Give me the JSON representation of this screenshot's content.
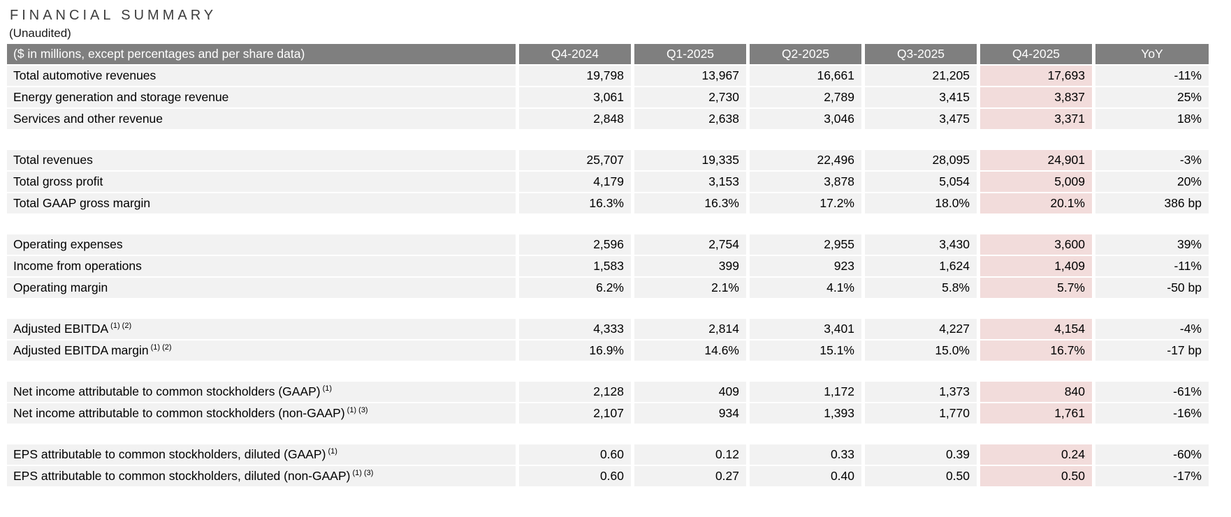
{
  "page": {
    "title": "FINANCIAL SUMMARY",
    "subtitle": "(Unaudited)"
  },
  "colors": {
    "header_bg": "#7f7f7f",
    "header_text": "#ffffff",
    "row_bg": "#f2f2f2",
    "highlight_bg": "#f2dcdb",
    "title_text": "#3d3d3d",
    "body_text": "#000000"
  },
  "table": {
    "header": {
      "label": "($ in millions, except percentages and per share data)",
      "columns": [
        "Q4-2024",
        "Q1-2025",
        "Q2-2025",
        "Q3-2025",
        "Q4-2025",
        "YoY"
      ]
    },
    "highlight_column": "Q4-2025",
    "rows": [
      {
        "label": "Total automotive revenues",
        "sup": "",
        "values": [
          "19,798",
          "13,967",
          "16,661",
          "21,205",
          "17,693",
          "-11%"
        ]
      },
      {
        "label": "Energy generation and storage revenue",
        "sup": "",
        "values": [
          "3,061",
          "2,730",
          "2,789",
          "3,415",
          "3,837",
          "25%"
        ]
      },
      {
        "label": "Services and other revenue",
        "sup": "",
        "values": [
          "2,848",
          "2,638",
          "3,046",
          "3,475",
          "3,371",
          "18%"
        ]
      },
      {
        "spacer": true
      },
      {
        "label": "Total revenues",
        "sup": "",
        "values": [
          "25,707",
          "19,335",
          "22,496",
          "28,095",
          "24,901",
          "-3%"
        ]
      },
      {
        "label": "Total gross profit",
        "sup": "",
        "values": [
          "4,179",
          "3,153",
          "3,878",
          "5,054",
          "5,009",
          "20%"
        ]
      },
      {
        "label": "Total GAAP gross margin",
        "sup": "",
        "values": [
          "16.3%",
          "16.3%",
          "17.2%",
          "18.0%",
          "20.1%",
          "386 bp"
        ]
      },
      {
        "spacer": true
      },
      {
        "label": "Operating expenses",
        "sup": "",
        "values": [
          "2,596",
          "2,754",
          "2,955",
          "3,430",
          "3,600",
          "39%"
        ]
      },
      {
        "label": "Income from operations",
        "sup": "",
        "values": [
          "1,583",
          "399",
          "923",
          "1,624",
          "1,409",
          "-11%"
        ]
      },
      {
        "label": "Operating margin",
        "sup": "",
        "values": [
          "6.2%",
          "2.1%",
          "4.1%",
          "5.8%",
          "5.7%",
          "-50 bp"
        ]
      },
      {
        "spacer": true
      },
      {
        "label": "Adjusted EBITDA",
        "sup": "(1) (2)",
        "values": [
          "4,333",
          "2,814",
          "3,401",
          "4,227",
          "4,154",
          "-4%"
        ]
      },
      {
        "label": "Adjusted EBITDA margin",
        "sup": "(1) (2)",
        "values": [
          "16.9%",
          "14.6%",
          "15.1%",
          "15.0%",
          "16.7%",
          "-17 bp"
        ]
      },
      {
        "spacer": true
      },
      {
        "label": "Net income attributable to common stockholders (GAAP)",
        "sup": "(1)",
        "values": [
          "2,128",
          "409",
          "1,172",
          "1,373",
          "840",
          "-61%"
        ]
      },
      {
        "label": "Net income attributable to common stockholders (non-GAAP)",
        "sup": "(1) (3)",
        "values": [
          "2,107",
          "934",
          "1,393",
          "1,770",
          "1,761",
          "-16%"
        ]
      },
      {
        "spacer": true
      },
      {
        "label": "EPS attributable to common stockholders, diluted (GAAP)",
        "sup": "(1)",
        "values": [
          "0.60",
          "0.12",
          "0.33",
          "0.39",
          "0.24",
          "-60%"
        ]
      },
      {
        "label": "EPS attributable to common stockholders, diluted (non-GAAP)",
        "sup": "(1) (3)",
        "values": [
          "0.60",
          "0.27",
          "0.40",
          "0.50",
          "0.50",
          "-17%"
        ]
      }
    ]
  }
}
